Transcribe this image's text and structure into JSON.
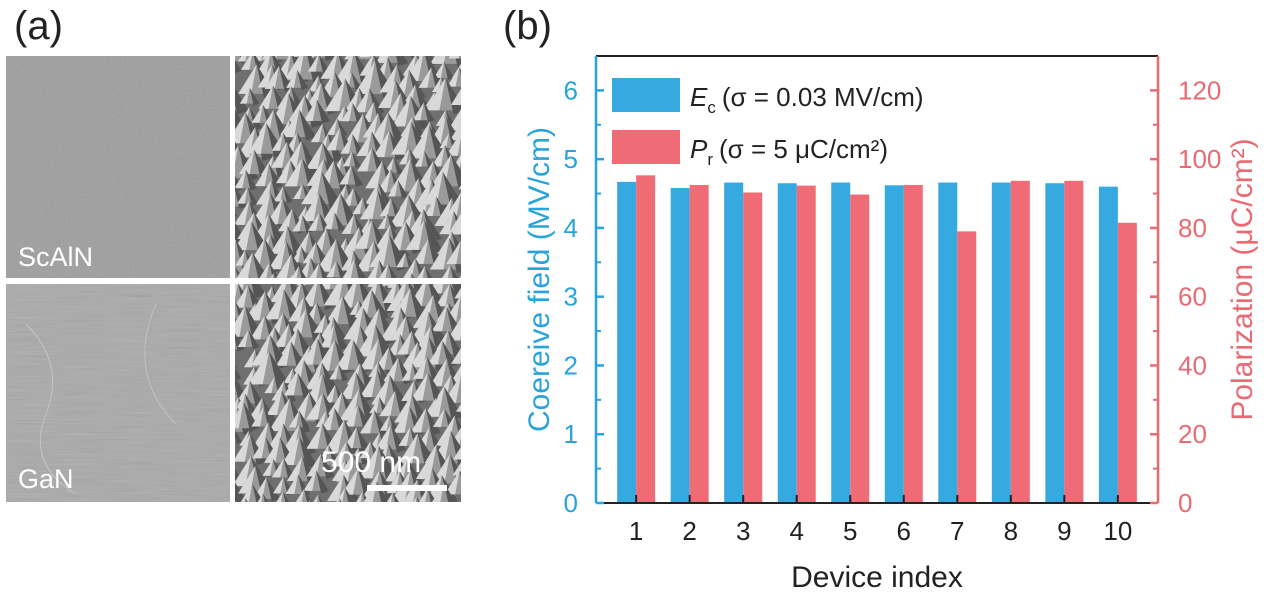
{
  "panels": {
    "a_label": "(a)",
    "b_label": "(b)"
  },
  "sem": {
    "top_label": "ScAlN",
    "bottom_label": "GaN",
    "scale_bar_label": "500 nm"
  },
  "chart_data": {
    "type": "bar",
    "xlabel": "Device index",
    "categories": [
      "1",
      "2",
      "3",
      "4",
      "5",
      "6",
      "7",
      "8",
      "9",
      "10"
    ],
    "y_left": {
      "label": "Coereive field (MV/cm)",
      "range": [
        0,
        6.5
      ],
      "ticks": [
        0,
        1,
        2,
        3,
        4,
        5,
        6
      ],
      "color": "#29a3dc"
    },
    "y_right": {
      "label": "Polarization (μC/cm²)",
      "range": [
        0,
        130
      ],
      "ticks": [
        0,
        20,
        40,
        60,
        80,
        100,
        120
      ],
      "color": "#ea6a73"
    },
    "series": [
      {
        "legend_main": "E",
        "legend_sub": "c",
        "legend_rest": "(σ = 0.03 MV/cm)",
        "axis": "left",
        "color": "#36a9e1",
        "values": [
          4.67,
          4.58,
          4.66,
          4.65,
          4.66,
          4.62,
          4.66,
          4.66,
          4.65,
          4.6
        ]
      },
      {
        "legend_main": "P",
        "legend_sub": "r",
        "legend_rest": "(σ = 5 μC/cm²)",
        "axis": "right",
        "color": "#ef6b75",
        "values": [
          95.3,
          92.5,
          90.3,
          92.3,
          89.7,
          92.5,
          79.0,
          93.7,
          93.7,
          81.5
        ]
      }
    ],
    "legend_position": "top-left",
    "grid": false
  }
}
